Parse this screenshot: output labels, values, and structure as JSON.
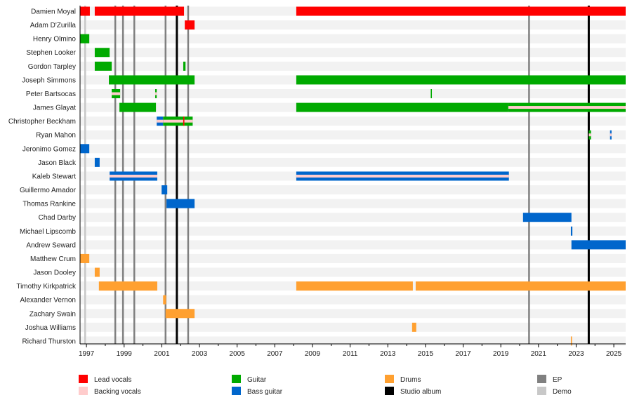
{
  "chart_data": {
    "type": "timeline",
    "xlim": [
      1996.66,
      2025.63
    ],
    "x_ticks": [
      "1997",
      "1999",
      "2001",
      "2003",
      "2005",
      "2007",
      "2009",
      "2011",
      "2013",
      "2015",
      "2017",
      "2019",
      "2021",
      "2023",
      "2025"
    ],
    "roles": {
      "lead": {
        "label": "Lead vocals",
        "color": "#ff0000"
      },
      "backing": {
        "label": "Backing vocals",
        "color": "#ffcccc"
      },
      "guitar": {
        "label": "Guitar",
        "color": "#00aa00"
      },
      "bass": {
        "label": "Bass guitar",
        "color": "#0066cc"
      },
      "drums": {
        "label": "Drums",
        "color": "#ffa030"
      },
      "studio": {
        "label": "Studio album",
        "color": "#000000"
      },
      "ep": {
        "label": "EP",
        "color": "#808080"
      },
      "demo": {
        "label": "Demo",
        "color": "#c8c8c8"
      }
    },
    "legend_order": [
      [
        "lead",
        "backing"
      ],
      [
        "guitar",
        "bass"
      ],
      [
        "drums",
        "studio"
      ],
      [
        "ep",
        "demo"
      ]
    ],
    "legend_placement": "bottom",
    "releases": [
      {
        "type": "demo",
        "year": 1996.93
      },
      {
        "type": "ep",
        "year": 1998.53
      },
      {
        "type": "ep",
        "year": 1998.94
      },
      {
        "type": "ep",
        "year": 1999.54
      },
      {
        "type": "ep",
        "year": 2001.2
      },
      {
        "type": "studio",
        "year": 2001.8
      },
      {
        "type": "ep",
        "year": 2002.4
      },
      {
        "type": "ep",
        "year": 2020.5
      },
      {
        "type": "studio",
        "year": 2023.67
      }
    ],
    "members": [
      {
        "name": "Damien Moyal",
        "bars": [
          [
            1996.66,
            1997.18,
            "lead"
          ],
          [
            1997.44,
            2002.18,
            "lead"
          ],
          [
            2008.14,
            2025.63,
            "lead"
          ]
        ]
      },
      {
        "name": "Adam D'Zurilla",
        "bars": [
          [
            2002.22,
            2002.74,
            "lead"
          ]
        ]
      },
      {
        "name": "Henry Olmino",
        "bars": [
          [
            1996.66,
            1997.15,
            "guitar"
          ]
        ]
      },
      {
        "name": "Stephen Looker",
        "bars": [
          [
            1997.44,
            1998.23,
            "guitar"
          ]
        ]
      },
      {
        "name": "Gordon Tarpley",
        "bars": [
          [
            1997.44,
            1998.34,
            "guitar"
          ],
          [
            2002.14,
            2002.26,
            "guitar"
          ]
        ]
      },
      {
        "name": "Joseph Simmons",
        "bars": [
          [
            1998.19,
            2002.74,
            "guitar"
          ],
          [
            2008.14,
            2025.63,
            "guitar"
          ]
        ]
      },
      {
        "name": "Peter Bartsocas",
        "bars": [
          [
            1998.34,
            1998.79,
            "guitar",
            "backing"
          ],
          [
            2000.65,
            2000.73,
            "guitar",
            "backing"
          ],
          [
            2015.28,
            2015.34,
            "guitar"
          ]
        ]
      },
      {
        "name": "James Glayat",
        "bars": [
          [
            1998.75,
            2000.69,
            "guitar"
          ],
          [
            2008.14,
            2019.4,
            "guitar"
          ],
          [
            2019.4,
            2025.63,
            "guitar",
            "backing"
          ]
        ]
      },
      {
        "name": "Christopher Beckham",
        "bars": [
          [
            2000.73,
            2001.07,
            "bass",
            "backing"
          ],
          [
            2001.07,
            2002.14,
            "guitar",
            "backing"
          ],
          [
            2002.14,
            2002.2,
            "guitar",
            "lead"
          ],
          [
            2002.2,
            2002.64,
            "guitar",
            "backing"
          ]
        ]
      },
      {
        "name": "Ryan Mahon",
        "bars": [
          [
            2023.67,
            2023.79,
            "guitar",
            "backing"
          ],
          [
            2024.8,
            2024.88,
            "bass",
            "backing"
          ]
        ]
      },
      {
        "name": "Jeronimo Gomez",
        "bars": [
          [
            1996.66,
            1997.15,
            "bass"
          ]
        ]
      },
      {
        "name": "Jason Black",
        "bars": [
          [
            1997.44,
            1997.7,
            "bass"
          ]
        ]
      },
      {
        "name": "Kaleb Stewart",
        "bars": [
          [
            1998.23,
            2000.76,
            "bass",
            "backing"
          ],
          [
            2008.14,
            2019.43,
            "bass",
            "backing"
          ]
        ]
      },
      {
        "name": "Guillermo Amador",
        "bars": [
          [
            2000.99,
            2001.29,
            "bass"
          ]
        ]
      },
      {
        "name": "Thomas Rankine",
        "bars": [
          [
            2001.25,
            2002.74,
            "bass"
          ]
        ]
      },
      {
        "name": "Chad Darby",
        "bars": [
          [
            2020.18,
            2022.75,
            "bass"
          ]
        ]
      },
      {
        "name": "Michael Lipscomb",
        "bars": [
          [
            2022.72,
            2022.8,
            "bass"
          ]
        ]
      },
      {
        "name": "Andrew Seward",
        "bars": [
          [
            2022.75,
            2025.63,
            "bass"
          ]
        ]
      },
      {
        "name": "Matthew Crum",
        "bars": [
          [
            1996.66,
            1997.15,
            "drums"
          ]
        ]
      },
      {
        "name": "Jason Dooley",
        "bars": [
          [
            1997.44,
            1997.7,
            "drums"
          ]
        ]
      },
      {
        "name": "Timothy Kirkpatrick",
        "bars": [
          [
            1997.66,
            2000.76,
            "drums"
          ],
          [
            2008.14,
            2014.33,
            "drums"
          ],
          [
            2014.48,
            2025.63,
            "drums"
          ]
        ]
      },
      {
        "name": "Alexander Vernon",
        "bars": [
          [
            2001.07,
            2001.23,
            "drums"
          ]
        ]
      },
      {
        "name": "Zachary Swain",
        "bars": [
          [
            2001.2,
            2002.74,
            "drums"
          ]
        ]
      },
      {
        "name": "Joshua Williams",
        "bars": [
          [
            2014.29,
            2014.51,
            "drums"
          ]
        ]
      },
      {
        "name": "Richard Thurston",
        "bars": [
          [
            2022.72,
            2022.78,
            "drums"
          ]
        ]
      }
    ]
  }
}
